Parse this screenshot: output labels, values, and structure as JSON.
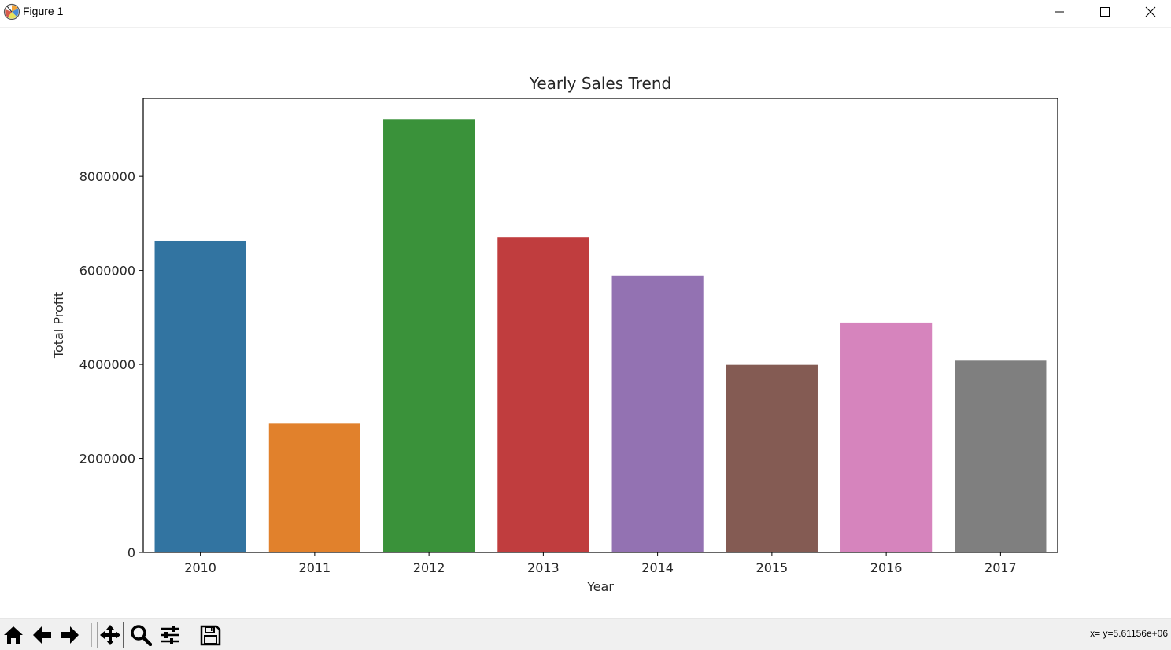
{
  "window": {
    "title": "Figure 1",
    "controls": [
      "minimize",
      "maximize",
      "close"
    ]
  },
  "toolbar": {
    "buttons": [
      {
        "name": "home",
        "icon": "home-icon"
      },
      {
        "name": "back",
        "icon": "left-arrow-icon"
      },
      {
        "name": "forward",
        "icon": "right-arrow-icon"
      },
      {
        "name": "pan",
        "icon": "pan-icon"
      },
      {
        "name": "zoom",
        "icon": "magnifier-icon"
      },
      {
        "name": "configure-subplots",
        "icon": "sliders-icon"
      },
      {
        "name": "save",
        "icon": "floppy-disk-icon"
      }
    ],
    "coordinates": "x= y=5.61156e+06"
  },
  "chart_data": {
    "type": "bar",
    "title": "Yearly Sales Trend",
    "xlabel": "Year",
    "ylabel": "Total Profit",
    "categories": [
      "2010",
      "2011",
      "2012",
      "2013",
      "2014",
      "2015",
      "2016",
      "2017"
    ],
    "values": [
      6630000,
      2740000,
      9220000,
      6710000,
      5880000,
      3990000,
      4890000,
      4080000
    ],
    "colors": [
      "#3274a1",
      "#e1812c",
      "#3a923a",
      "#c03d3e",
      "#9372b2",
      "#845b53",
      "#d684bd",
      "#7f7f7f"
    ],
    "yticks": [
      0,
      2000000,
      4000000,
      6000000,
      8000000
    ],
    "ytick_labels": [
      "0",
      "2000000",
      "4000000",
      "6000000",
      "8000000"
    ],
    "ylim": [
      0,
      9660000
    ],
    "grid": false,
    "legend": "none"
  }
}
